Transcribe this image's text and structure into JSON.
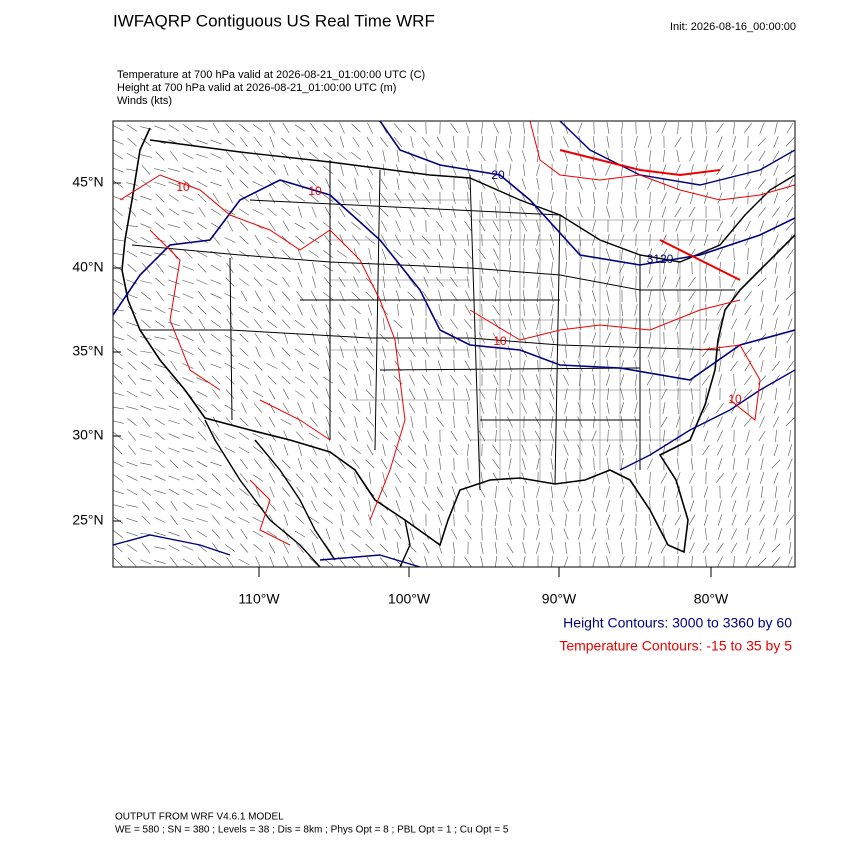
{
  "header": {
    "title": "IWFAQRP Contiguous US Real Time WRF",
    "init": "Init: 2026-08-16_00:00:00"
  },
  "fields": [
    "Temperature at 700 hPa valid at 2026-08-21_01:00:00 UTC   (C)",
    "Height at 700 hPa valid at 2026-08-21_01:00:00 UTC   (m)",
    "Winds   (kts)"
  ],
  "map": {
    "lat_labels": [
      "45°N",
      "40°N",
      "35°N",
      "30°N",
      "25°N"
    ],
    "lon_labels": [
      "110°W",
      "100°W",
      "90°W",
      "80°W"
    ],
    "contour_labels": [
      "3120",
      "20",
      "10",
      "10",
      "10",
      "10"
    ]
  },
  "legend": [
    "Height Contours: 3000 to 3360 by 60",
    "Temperature Contours: -15 to 35 by 5"
  ],
  "footer": [
    "OUTPUT FROM WRF V4.6.1 MODEL",
    "WE = 580 ; SN = 380 ; Levels = 38 ; Dis = 8km ; Phys Opt = 8 ; PBL Opt = 1 ; Cu Opt = 5"
  ]
}
